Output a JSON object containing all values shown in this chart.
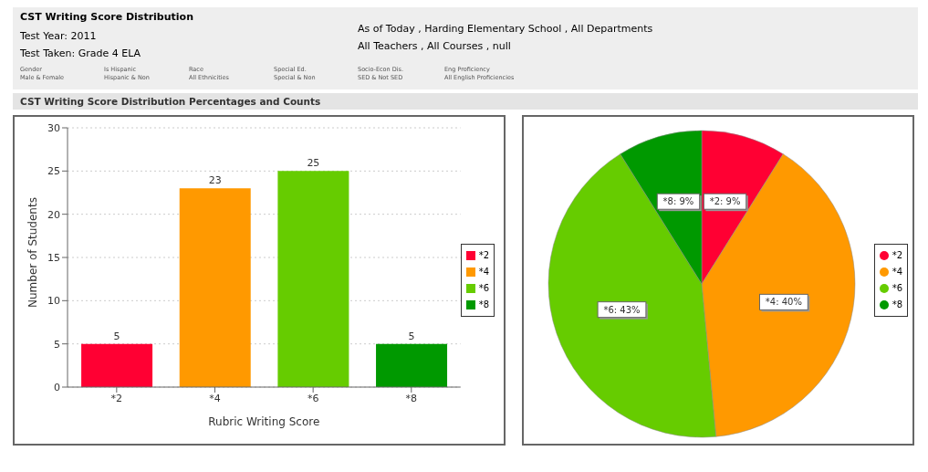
{
  "chart_data": [
    {
      "type": "other",
      "title": "CST Writing Score Distribution",
      "annotations": [
        "Test Year: 2011",
        "Test Taken: Grade 4 ELA",
        "As of Today , Harding Elementary School , All Departments",
        "All Teachers , All Courses , null",
        "Gender",
        "Male & Female",
        "Is Hispanic",
        "Hispanic & Non",
        "Race",
        "All Ethnicities",
        "Special Ed.",
        "Special & Non",
        "Socio-Econ Dis.",
        "SED & Not SED",
        "Eng Proficiency",
        "All English Proficiencies",
        "CST Writing Score Distribution Percentages and Counts"
      ]
    },
    {
      "type": "bar",
      "xlabel": "Rubric Writing Score",
      "ylabel": "Number of Students",
      "categories": [
        "*2",
        "*4",
        "*6",
        "*8"
      ],
      "stacked": true,
      "series": [
        {
          "name": "*2",
          "color": "#ff0033",
          "values": [
            5,
            null,
            null,
            null
          ]
        },
        {
          "name": "*4",
          "color": "#ff9900",
          "values": [
            null,
            23,
            null,
            null
          ]
        },
        {
          "name": "*6",
          "color": "#66cc00",
          "values": [
            null,
            null,
            25,
            null
          ]
        },
        {
          "name": "*8",
          "color": "#009900",
          "values": [
            null,
            null,
            null,
            5
          ]
        }
      ],
      "ylim": [
        0,
        30
      ],
      "yticks": [
        0,
        5,
        10,
        15,
        20,
        25,
        30
      ],
      "grid": "y",
      "legend": "right",
      "data_labels": true
    },
    {
      "type": "pie",
      "categories": [
        "*2",
        "*4",
        "*6",
        "*8"
      ],
      "values": [
        9,
        40,
        43,
        9
      ],
      "colors": [
        "#ff0033",
        "#ff9900",
        "#66cc00",
        "#009900"
      ],
      "value_labels": [
        "*2: 9%",
        "*4: 40%",
        "*6: 43%",
        "*8: 9%"
      ],
      "legend": "right"
    }
  ]
}
